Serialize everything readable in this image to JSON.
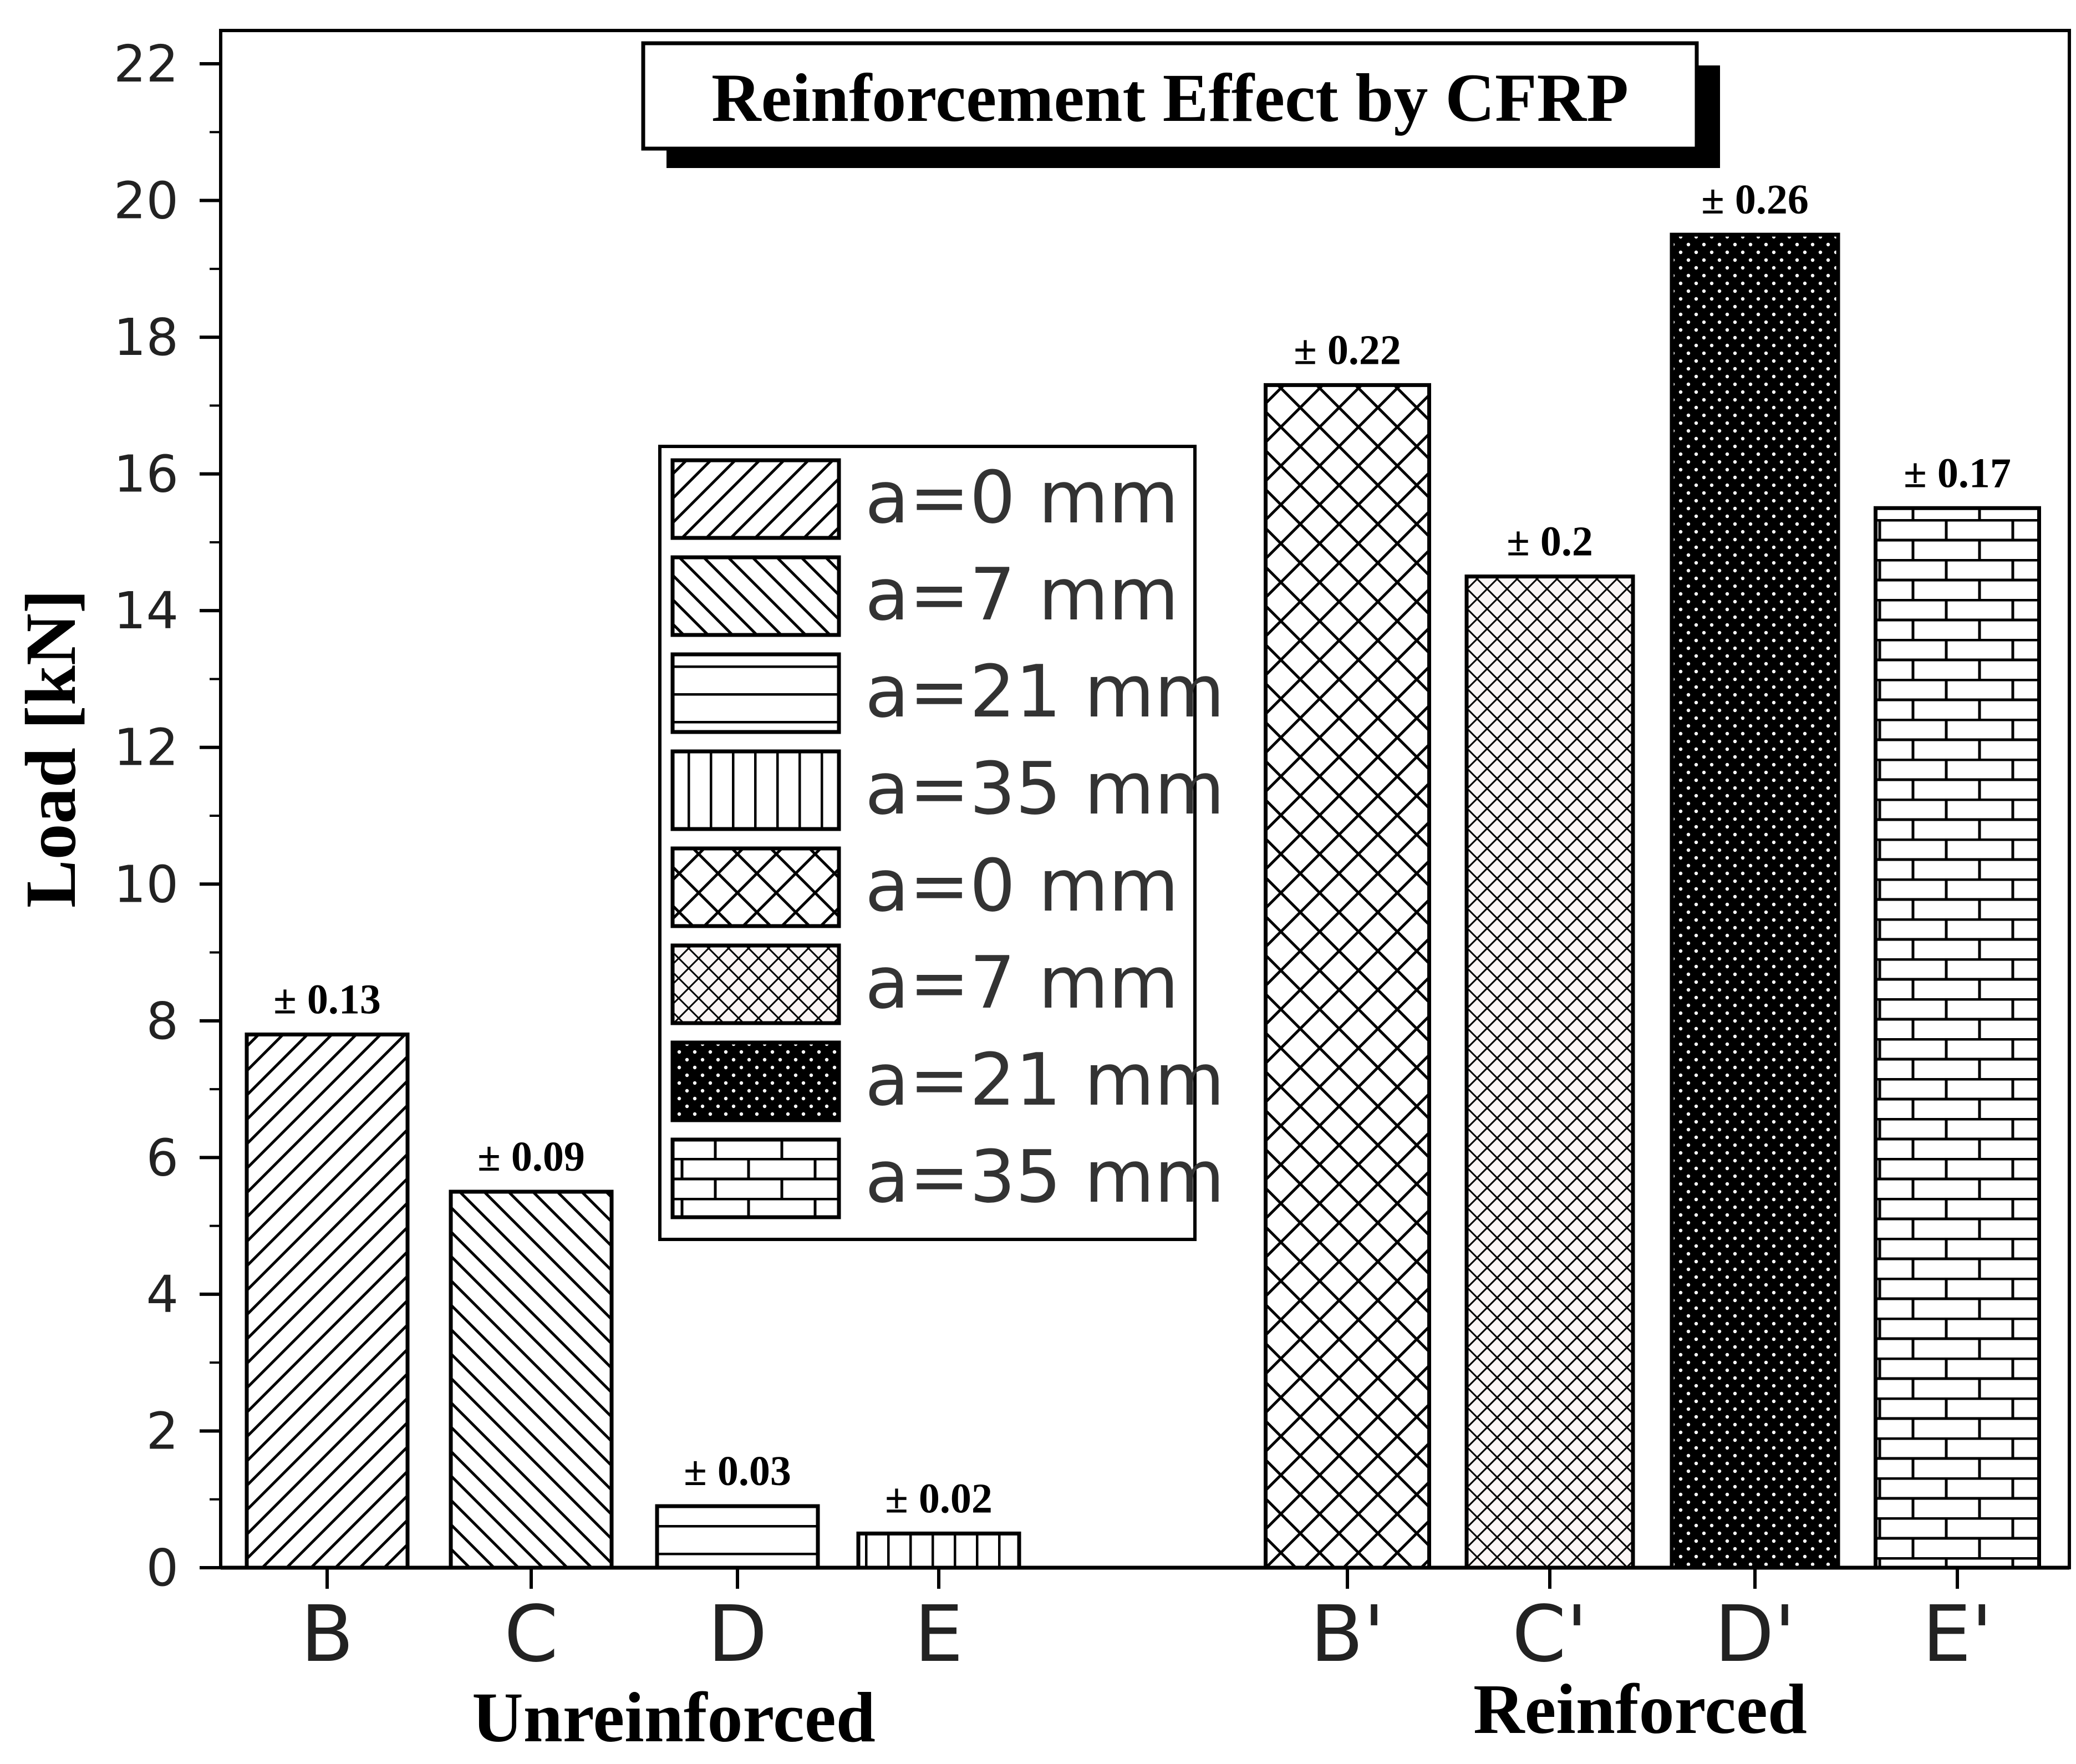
{
  "chart_data": {
    "type": "bar",
    "title": "Reinforcement Effect by CFRP",
    "ylabel": "Load [kN]",
    "ylim": [
      0,
      22
    ],
    "yticks": [
      0,
      2,
      4,
      6,
      8,
      10,
      12,
      14,
      16,
      18,
      20,
      22
    ],
    "grid": false,
    "legend_position": "center-left",
    "categories": [
      "B",
      "C",
      "D",
      "E",
      "B'",
      "C'",
      "D'",
      "E'"
    ],
    "groups": [
      {
        "label": "Unreinforced",
        "categories": [
          "B",
          "C",
          "D",
          "E"
        ]
      },
      {
        "label": "Reinforced",
        "categories": [
          "B'",
          "C'",
          "D'",
          "E'"
        ]
      }
    ],
    "values": [
      7.8,
      5.5,
      0.9,
      0.5,
      17.3,
      14.5,
      19.5,
      15.5
    ],
    "errors": [
      "± 0.13",
      "± 0.09",
      "± 0.03",
      "± 0.02",
      "± 0.22",
      "± 0.2",
      "± 0.26",
      "± 0.17"
    ],
    "patterns": [
      "diag-right",
      "diag-left",
      "horizontal",
      "vertical",
      "crosshatch",
      "fine-crosshatch",
      "dots",
      "bricks"
    ],
    "legend": [
      {
        "label": "a=0 mm",
        "pattern": "diag-right"
      },
      {
        "label": "a=7 mm",
        "pattern": "diag-left"
      },
      {
        "label": "a=21 mm",
        "pattern": "horizontal"
      },
      {
        "label": "a=35 mm",
        "pattern": "vertical"
      },
      {
        "label": "a=0 mm",
        "pattern": "crosshatch"
      },
      {
        "label": "a=7 mm",
        "pattern": "fine-crosshatch"
      },
      {
        "label": "a=21 mm",
        "pattern": "dots"
      },
      {
        "label": "a=35 mm",
        "pattern": "bricks"
      }
    ]
  }
}
